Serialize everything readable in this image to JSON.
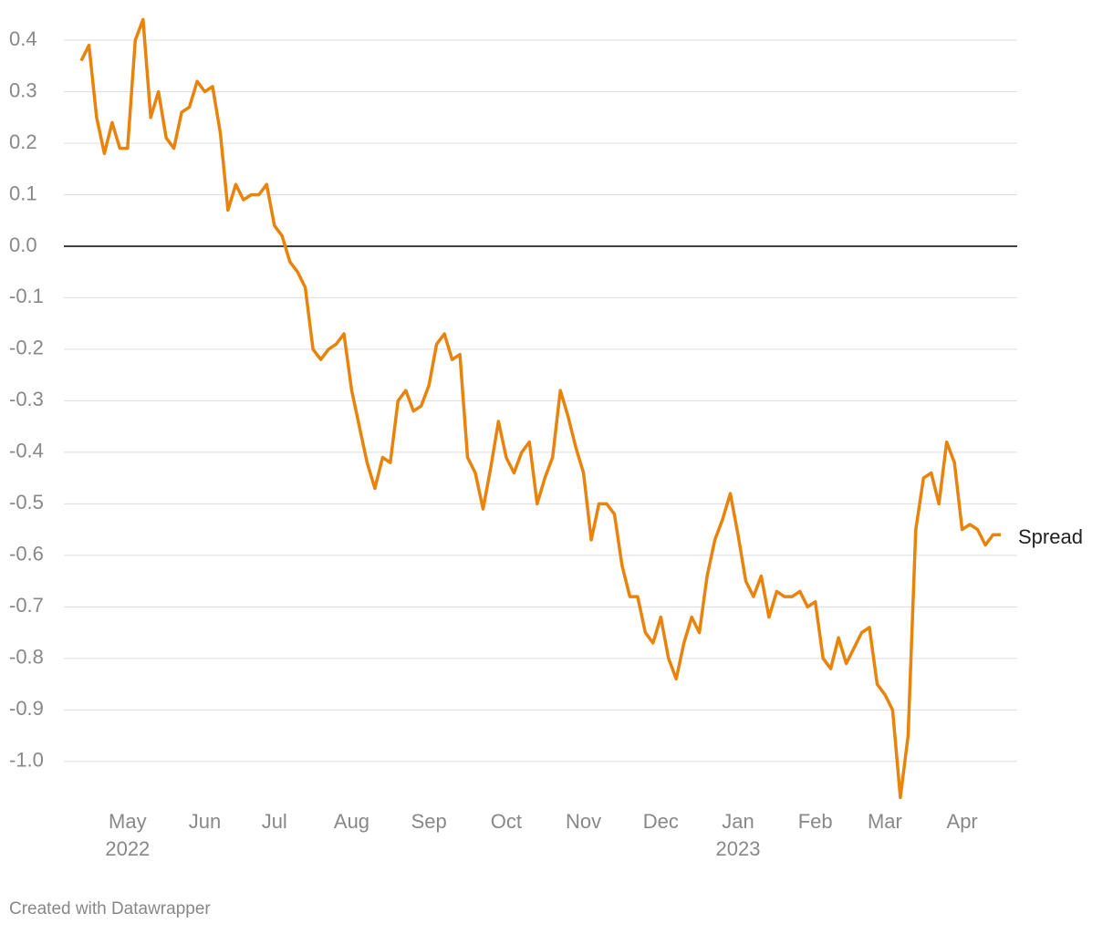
{
  "chart_data": {
    "type": "line",
    "categories": [
      null,
      null,
      null,
      null,
      null,
      null,
      "May 2022",
      null,
      null,
      null,
      null,
      null,
      null,
      null,
      null,
      null,
      "Jun",
      null,
      null,
      null,
      null,
      null,
      null,
      null,
      null,
      "Jul",
      null,
      null,
      null,
      null,
      null,
      null,
      null,
      null,
      null,
      "Aug",
      null,
      null,
      null,
      null,
      null,
      null,
      null,
      null,
      null,
      "Sep",
      null,
      null,
      null,
      null,
      null,
      null,
      null,
      null,
      null,
      "Oct",
      null,
      null,
      null,
      null,
      null,
      null,
      null,
      null,
      null,
      "Nov",
      null,
      null,
      null,
      null,
      null,
      null,
      null,
      null,
      null,
      "Dec",
      null,
      null,
      null,
      null,
      null,
      null,
      null,
      null,
      null,
      "Jan 2023",
      null,
      null,
      null,
      null,
      null,
      null,
      null,
      null,
      null,
      "Feb",
      null,
      null,
      null,
      null,
      null,
      null,
      null,
      null,
      "Mar",
      null,
      null,
      null,
      null,
      null,
      null,
      null,
      null,
      null,
      "Apr",
      null,
      null,
      null,
      null,
      null
    ],
    "series": [
      {
        "name": "Spread",
        "color": "#e8830c",
        "values": [
          0.36,
          0.39,
          0.25,
          0.18,
          0.24,
          0.19,
          0.19,
          0.4,
          0.44,
          0.25,
          0.3,
          0.21,
          0.19,
          0.26,
          0.27,
          0.32,
          0.3,
          0.31,
          0.22,
          0.07,
          0.12,
          0.09,
          0.1,
          0.1,
          0.12,
          0.04,
          0.02,
          -0.03,
          -0.05,
          -0.08,
          -0.2,
          -0.22,
          -0.2,
          -0.19,
          -0.17,
          -0.28,
          -0.35,
          -0.42,
          -0.47,
          -0.41,
          -0.42,
          -0.3,
          -0.28,
          -0.32,
          -0.31,
          -0.27,
          -0.19,
          -0.17,
          -0.22,
          -0.21,
          -0.41,
          -0.44,
          -0.51,
          -0.43,
          -0.34,
          -0.41,
          -0.44,
          -0.4,
          -0.38,
          -0.5,
          -0.45,
          -0.41,
          -0.28,
          -0.33,
          -0.39,
          -0.44,
          -0.57,
          -0.5,
          -0.5,
          -0.52,
          -0.62,
          -0.68,
          -0.68,
          -0.75,
          -0.77,
          -0.72,
          -0.8,
          -0.84,
          -0.77,
          -0.72,
          -0.75,
          -0.64,
          -0.57,
          -0.53,
          -0.48,
          -0.56,
          -0.65,
          -0.68,
          -0.64,
          -0.72,
          -0.67,
          -0.68,
          -0.68,
          -0.67,
          -0.7,
          -0.69,
          -0.8,
          -0.82,
          -0.76,
          -0.81,
          -0.78,
          -0.75,
          -0.74,
          -0.85,
          -0.87,
          -0.9,
          -1.07,
          -0.95,
          -0.55,
          -0.45,
          -0.44,
          -0.5,
          -0.38,
          -0.42,
          -0.55,
          -0.54,
          -0.55,
          -0.58,
          -0.56,
          -0.56
        ]
      }
    ],
    "ylim": [
      -1.08,
      0.44
    ],
    "yticks": [
      0.4,
      0.3,
      0.2,
      0.1,
      {
        "value": 0,
        "label": "0.0"
      },
      -0.1,
      -0.2,
      -0.3,
      -0.4,
      -0.5,
      -0.6,
      -0.7,
      -0.8,
      -0.9,
      {
        "value": -1,
        "label": "-1.0"
      }
    ],
    "grid": true,
    "footer": "Created with Datawrapper"
  }
}
